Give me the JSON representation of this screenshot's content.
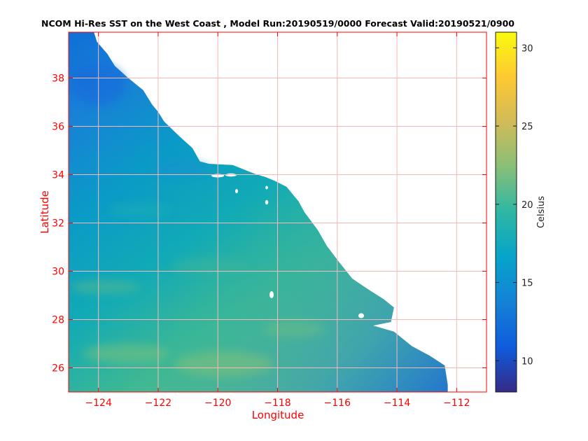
{
  "title": "NCOM Hi-Res SST on the West Coast , Model Run:20190519/0000 Forecast Valid:20190521/0900",
  "axes": {
    "xlabel": "Longitude",
    "ylabel": "Latitude",
    "xlim": [
      -125,
      -111
    ],
    "ylim": [
      25,
      39.9
    ],
    "xticks": [
      -124,
      -122,
      -120,
      -118,
      -116,
      -114,
      -112
    ],
    "yticks": [
      26,
      28,
      30,
      32,
      34,
      36,
      38
    ],
    "xtick_labels": [
      "−124",
      "−122",
      "−120",
      "−118",
      "−116",
      "−114",
      "−112"
    ],
    "ytick_labels": [
      "26",
      "28",
      "30",
      "32",
      "34",
      "36",
      "38"
    ],
    "axis_color": "#ff0000",
    "grid": true,
    "grid_color": "#f5b8b8"
  },
  "colorbar": {
    "label": "Celsius",
    "range": [
      8,
      31
    ],
    "ticks": [
      10,
      15,
      20,
      25,
      30
    ],
    "tick_labels": [
      "10",
      "15",
      "20",
      "25",
      "30"
    ],
    "colormap": "parula",
    "stops": [
      "#352a87",
      "#0f5cdd",
      "#1481d6",
      "#06a4ca",
      "#2eb7a4",
      "#87bf77",
      "#d1bb59",
      "#fec832",
      "#f9fb0e"
    ]
  },
  "chart_data": {
    "type": "heatmap",
    "variable": "Sea surface temperature",
    "units": "Celsius",
    "x_range": [
      -125,
      -111
    ],
    "y_range": [
      25,
      39.9
    ],
    "coastline": [
      [
        -124.15,
        39.9
      ],
      [
        -124.05,
        39.5
      ],
      [
        -123.7,
        39.0
      ],
      [
        -123.45,
        38.5
      ],
      [
        -123.0,
        38.0
      ],
      [
        -122.5,
        37.5
      ],
      [
        -122.2,
        36.9
      ],
      [
        -122.0,
        36.6
      ],
      [
        -121.8,
        36.2
      ],
      [
        -121.3,
        35.6
      ],
      [
        -120.85,
        35.1
      ],
      [
        -120.6,
        34.55
      ],
      [
        -120.3,
        34.45
      ],
      [
        -119.5,
        34.4
      ],
      [
        -118.8,
        34.05
      ],
      [
        -118.4,
        33.9
      ],
      [
        -118.1,
        33.75
      ],
      [
        -117.7,
        33.5
      ],
      [
        -117.3,
        32.9
      ],
      [
        -117.1,
        32.45
      ],
      [
        -116.65,
        31.7
      ],
      [
        -116.35,
        31.05
      ],
      [
        -115.95,
        30.4
      ],
      [
        -115.5,
        29.7
      ],
      [
        -114.9,
        29.2
      ],
      [
        -114.45,
        28.85
      ],
      [
        -114.1,
        28.5
      ],
      [
        -114.2,
        27.9
      ],
      [
        -114.8,
        27.75
      ],
      [
        -114.1,
        27.5
      ],
      [
        -113.5,
        26.9
      ],
      [
        -112.9,
        26.5
      ],
      [
        -112.4,
        26.1
      ],
      [
        -112.3,
        25.3
      ],
      [
        -112.3,
        25.0
      ]
    ],
    "sst_samples": [
      {
        "lon": -124.5,
        "lat": 39.5,
        "sst": 13.0
      },
      {
        "lon": -123.0,
        "lat": 37.0,
        "sst": 14.0
      },
      {
        "lon": -121.0,
        "lat": 34.2,
        "sst": 15.0
      },
      {
        "lon": -124.0,
        "lat": 32.0,
        "sst": 16.5
      },
      {
        "lon": -119.0,
        "lat": 31.0,
        "sst": 17.5
      },
      {
        "lon": -123.0,
        "lat": 28.0,
        "sst": 19.0
      },
      {
        "lon": -119.0,
        "lat": 26.0,
        "sst": 21.0
      },
      {
        "lon": -113.0,
        "lat": 26.0,
        "sst": 16.0
      }
    ]
  }
}
